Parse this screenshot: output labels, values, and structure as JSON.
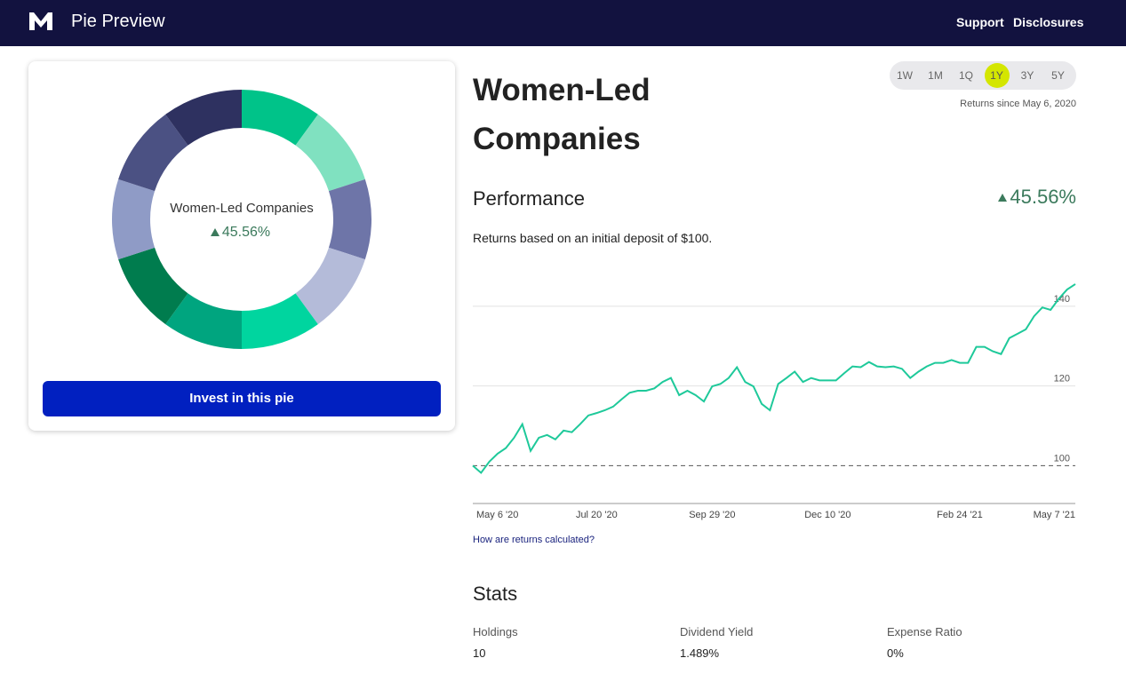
{
  "header": {
    "brand": "Pie Preview",
    "links": [
      "Support",
      "Disclosures"
    ]
  },
  "pie": {
    "title": "Women-Led Companies",
    "center_value": "45.56%",
    "values": [
      10,
      10,
      10,
      10,
      10,
      10,
      10,
      10,
      10,
      10
    ],
    "colors": [
      "#00c389",
      "#80e1c0",
      "#6e75a8",
      "#b4bbd9",
      "#00d59f",
      "#00a57f",
      "#007c4e",
      "#8f9bc6",
      "#4b5183",
      "#2e3160"
    ],
    "button": "Invest in this pie"
  },
  "title": "Women-Led Companies",
  "periods": {
    "options": [
      "1W",
      "1M",
      "1Q",
      "1Y",
      "3Y",
      "5Y"
    ],
    "selected": 3,
    "note": "Returns since May 6, 2020"
  },
  "performance": {
    "heading": "Performance",
    "value": "45.56%",
    "description": "Returns based on an initial deposit of $100.",
    "link": "How are returns calculated?"
  },
  "chart_data": {
    "type": "line",
    "color": "#1ec99a",
    "x": [
      "May 6 '20",
      null,
      null,
      null,
      null,
      null,
      null,
      null,
      null,
      null,
      null,
      null,
      null,
      null,
      null,
      "Jul 20 '20",
      null,
      null,
      null,
      null,
      null,
      null,
      null,
      null,
      null,
      null,
      null,
      null,
      null,
      "Sep 29 '20",
      null,
      null,
      null,
      null,
      null,
      null,
      null,
      null,
      null,
      null,
      null,
      null,
      null,
      "Dec 10 '20",
      null,
      null,
      null,
      null,
      null,
      null,
      null,
      null,
      null,
      null,
      null,
      null,
      null,
      null,
      null,
      "Feb 24 '21",
      null,
      null,
      null,
      null,
      null,
      null,
      null,
      null,
      null,
      null,
      null,
      null,
      null,
      "May 7 '21"
    ],
    "values": [
      100,
      98.2,
      101,
      103,
      104.4,
      107,
      110.4,
      103.7,
      107,
      107.7,
      106.6,
      108.8,
      108.4,
      110.4,
      112.6,
      113.2,
      113.9,
      114.8,
      116.6,
      118.3,
      118.8,
      118.8,
      119.4,
      121,
      122,
      117.7,
      118.8,
      117.7,
      116.1,
      119.9,
      120.5,
      122,
      124.7,
      121,
      119.9,
      115.5,
      113.9,
      120.5,
      122,
      123.6,
      121,
      122,
      121.4,
      121.4,
      121.4,
      123.2,
      124.9,
      124.7,
      126,
      124.9,
      124.7,
      124.9,
      124.3,
      122,
      123.6,
      124.9,
      125.8,
      125.8,
      126.5,
      125.8,
      125.8,
      129.8,
      129.8,
      128.7,
      128,
      132,
      133.1,
      134.2,
      137.5,
      139.7,
      139.1,
      141.9,
      144.2,
      145.56
    ],
    "ylim": [
      90.5,
      150
    ],
    "yticks": [
      100,
      120,
      140
    ],
    "baseline": 100,
    "grid": true
  },
  "stats": {
    "heading": "Stats",
    "items": [
      {
        "label": "Holdings",
        "value": "10"
      },
      {
        "label": "Dividend Yield",
        "value": "1.489%"
      },
      {
        "label": "Expense Ratio",
        "value": "0%"
      }
    ]
  }
}
